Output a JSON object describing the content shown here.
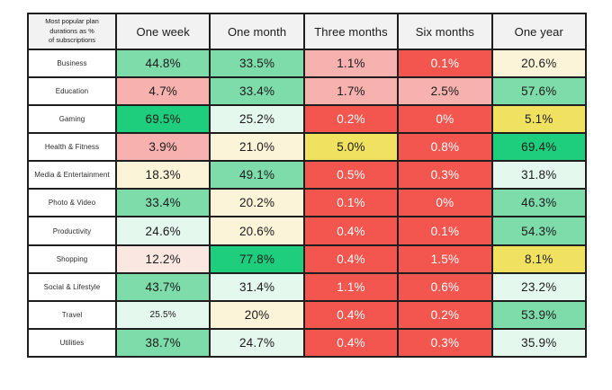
{
  "corner_label": "Most popular plan\ndurations as %\nof subscriptions",
  "palette": {
    "green-strong": {
      "bg": "#1FCE7C",
      "fg": "#1A1A1A"
    },
    "green-med": {
      "bg": "#7EDCAB",
      "fg": "#1A1A1A"
    },
    "mint": {
      "bg": "#E4F8ED",
      "fg": "#1A1A1A"
    },
    "cream": {
      "bg": "#FBF4D8",
      "fg": "#1A1A1A"
    },
    "yellow": {
      "bg": "#F0E161",
      "fg": "#1A1A1A"
    },
    "pink-light": {
      "bg": "#FAE7E2",
      "fg": "#1A1A1A"
    },
    "pink": {
      "bg": "#F7B2B0",
      "fg": "#1A1A1A"
    },
    "red": {
      "bg": "#F2564E",
      "fg": "#FFFFFF"
    }
  },
  "chart_data": {
    "type": "heatmap",
    "title": "Most popular plan durations as % of subscriptions",
    "columns": [
      "One week",
      "One month",
      "Three months",
      "Six months",
      "One year"
    ],
    "rows": [
      {
        "label": "Business",
        "cells": [
          {
            "t": "44.8%",
            "v": 44.8,
            "c": "green-med"
          },
          {
            "t": "33.5%",
            "v": 33.5,
            "c": "green-med"
          },
          {
            "t": "1.1%",
            "v": 1.1,
            "c": "pink"
          },
          {
            "t": "0.1%",
            "v": 0.1,
            "c": "red"
          },
          {
            "t": "20.6%",
            "v": 20.6,
            "c": "cream"
          }
        ]
      },
      {
        "label": "Education",
        "cells": [
          {
            "t": "4.7%",
            "v": 4.7,
            "c": "pink"
          },
          {
            "t": "33.4%",
            "v": 33.4,
            "c": "green-med"
          },
          {
            "t": "1.7%",
            "v": 1.7,
            "c": "pink"
          },
          {
            "t": "2.5%",
            "v": 2.5,
            "c": "pink"
          },
          {
            "t": "57.6%",
            "v": 57.6,
            "c": "green-med"
          }
        ]
      },
      {
        "label": "Gaming",
        "cells": [
          {
            "t": "69.5%",
            "v": 69.5,
            "c": "green-strong"
          },
          {
            "t": "25.2%",
            "v": 25.2,
            "c": "mint"
          },
          {
            "t": "0.2%",
            "v": 0.2,
            "c": "red"
          },
          {
            "t": "0%",
            "v": 0,
            "c": "red"
          },
          {
            "t": "5.1%",
            "v": 5.1,
            "c": "yellow"
          }
        ]
      },
      {
        "label": "Health & Fitness",
        "cells": [
          {
            "t": "3.9%",
            "v": 3.9,
            "c": "pink"
          },
          {
            "t": "21.0%",
            "v": 21.0,
            "c": "cream"
          },
          {
            "t": "5.0%",
            "v": 5.0,
            "c": "yellow"
          },
          {
            "t": "0.8%",
            "v": 0.8,
            "c": "red"
          },
          {
            "t": "69.4%",
            "v": 69.4,
            "c": "green-strong"
          }
        ]
      },
      {
        "label": "Media & Entertainment",
        "cells": [
          {
            "t": "18.3%",
            "v": 18.3,
            "c": "cream"
          },
          {
            "t": "49.1%",
            "v": 49.1,
            "c": "green-med"
          },
          {
            "t": "0.5%",
            "v": 0.5,
            "c": "red"
          },
          {
            "t": "0.3%",
            "v": 0.3,
            "c": "red"
          },
          {
            "t": "31.8%",
            "v": 31.8,
            "c": "mint"
          }
        ]
      },
      {
        "label": "Photo & Video",
        "cells": [
          {
            "t": "33.4%",
            "v": 33.4,
            "c": "green-med"
          },
          {
            "t": "20.2%",
            "v": 20.2,
            "c": "cream"
          },
          {
            "t": "0.1%",
            "v": 0.1,
            "c": "red"
          },
          {
            "t": "0%",
            "v": 0,
            "c": "red"
          },
          {
            "t": "46.3%",
            "v": 46.3,
            "c": "green-med"
          }
        ]
      },
      {
        "label": "Productivity",
        "cells": [
          {
            "t": "24.6%",
            "v": 24.6,
            "c": "mint"
          },
          {
            "t": "20.6%",
            "v": 20.6,
            "c": "cream"
          },
          {
            "t": "0.4%",
            "v": 0.4,
            "c": "red"
          },
          {
            "t": "0.1%",
            "v": 0.1,
            "c": "red"
          },
          {
            "t": "54.3%",
            "v": 54.3,
            "c": "green-med"
          }
        ]
      },
      {
        "label": "Shopping",
        "cells": [
          {
            "t": "12.2%",
            "v": 12.2,
            "c": "pink-light"
          },
          {
            "t": "77.8%",
            "v": 77.8,
            "c": "green-strong"
          },
          {
            "t": "0.4%",
            "v": 0.4,
            "c": "red"
          },
          {
            "t": "1.5%",
            "v": 1.5,
            "c": "red"
          },
          {
            "t": "8.1%",
            "v": 8.1,
            "c": "yellow"
          }
        ]
      },
      {
        "label": "Social & Lifestyle",
        "cells": [
          {
            "t": "43.7%",
            "v": 43.7,
            "c": "green-med"
          },
          {
            "t": "31.4%",
            "v": 31.4,
            "c": "mint"
          },
          {
            "t": "1.1%",
            "v": 1.1,
            "c": "red"
          },
          {
            "t": "0.6%",
            "v": 0.6,
            "c": "red"
          },
          {
            "t": "23.2%",
            "v": 23.2,
            "c": "mint"
          }
        ]
      },
      {
        "label": "Travel",
        "cells": [
          {
            "t": "25.5%",
            "v": 25.5,
            "c": "mint",
            "small": true
          },
          {
            "t": "20%",
            "v": 20,
            "c": "cream"
          },
          {
            "t": "0.4%",
            "v": 0.4,
            "c": "red"
          },
          {
            "t": "0.2%",
            "v": 0.2,
            "c": "red"
          },
          {
            "t": "53.9%",
            "v": 53.9,
            "c": "green-med"
          }
        ]
      },
      {
        "label": "Utilities",
        "cells": [
          {
            "t": "38.7%",
            "v": 38.7,
            "c": "green-med"
          },
          {
            "t": "24.7%",
            "v": 24.7,
            "c": "mint"
          },
          {
            "t": "0.4%",
            "v": 0.4,
            "c": "red"
          },
          {
            "t": "0.3%",
            "v": 0.3,
            "c": "red"
          },
          {
            "t": "35.9%",
            "v": 35.9,
            "c": "mint"
          }
        ]
      }
    ]
  }
}
